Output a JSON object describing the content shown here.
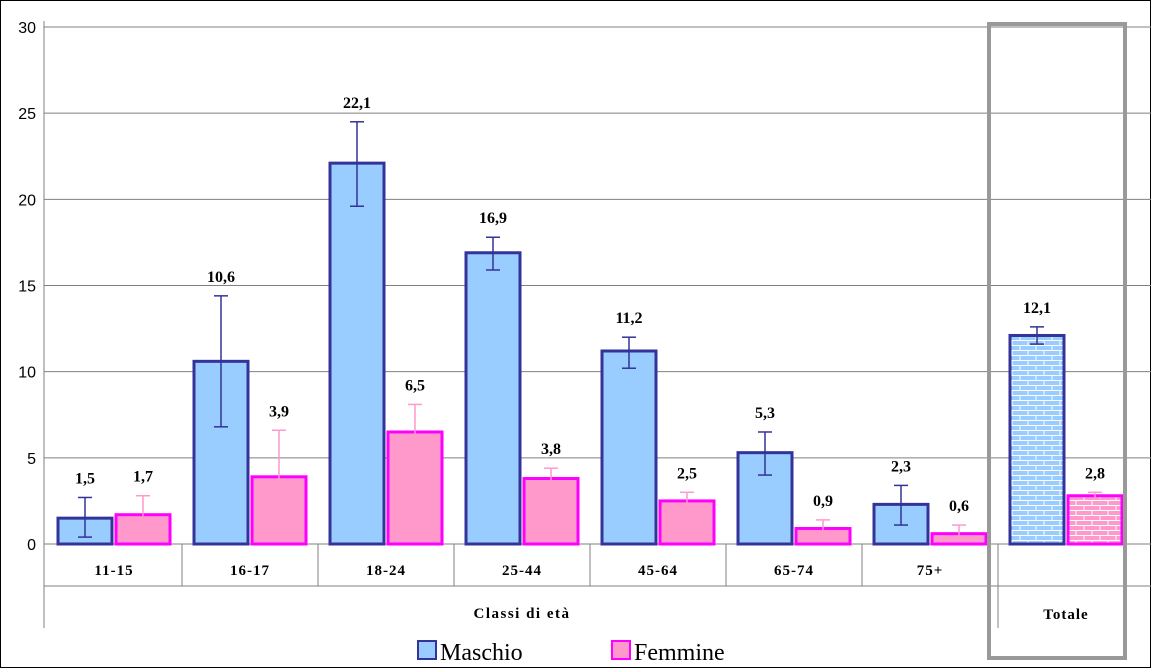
{
  "chart_data": {
    "type": "bar",
    "categories": [
      "11-15",
      "16-17",
      "18-24",
      "25-44",
      "45-64",
      "65-74",
      "75+",
      "Totale"
    ],
    "x_group_label": "Classi di età",
    "ylim": [
      0,
      30
    ],
    "yticks": [
      0,
      5,
      10,
      15,
      20,
      25,
      30
    ],
    "grid": true,
    "legend_position": "bottom",
    "series": [
      {
        "name": "Maschio",
        "values": [
          1.5,
          10.6,
          22.1,
          16.9,
          11.2,
          5.3,
          2.3,
          12.1
        ],
        "labels": [
          "1,5",
          "10,6",
          "22,1",
          "16,9",
          "11,2",
          "5,3",
          "2,3",
          "12,1"
        ],
        "err_low": [
          0.4,
          6.8,
          19.6,
          15.9,
          10.2,
          4.0,
          1.1,
          11.6
        ],
        "err_high": [
          2.7,
          14.4,
          24.5,
          17.8,
          12.0,
          6.5,
          3.4,
          12.6
        ],
        "fill": "#99ccff",
        "stroke": "#333399"
      },
      {
        "name": "Femmine",
        "values": [
          1.7,
          3.9,
          6.5,
          3.8,
          2.5,
          0.9,
          0.6,
          2.8
        ],
        "labels": [
          "1,7",
          "3,9",
          "6,5",
          "3,8",
          "2,5",
          "0,9",
          "0,6",
          "2,8"
        ],
        "err_low": [
          1.0,
          2.0,
          5.0,
          3.3,
          2.1,
          0.5,
          0.2,
          2.6
        ],
        "err_high": [
          2.8,
          6.6,
          8.1,
          4.4,
          3.0,
          1.4,
          1.1,
          3.0
        ],
        "fill": "#ff99cc",
        "stroke": "#ff00ff"
      }
    ]
  }
}
